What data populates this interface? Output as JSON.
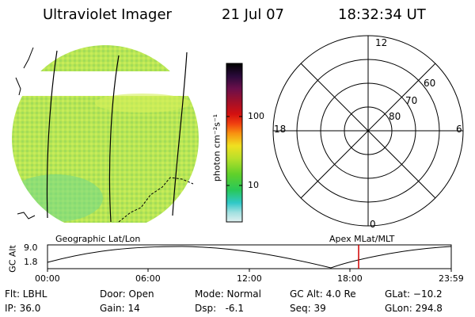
{
  "header": {
    "instrument": "Ultraviolet Imager",
    "date": "21 Jul 07",
    "time": "18:32:34 UT"
  },
  "colorbar": {
    "unit": "photon cm⁻²s⁻¹",
    "ticks": [
      "100",
      "10"
    ],
    "colors": [
      "#000000",
      "#2a0a3a",
      "#6b0f4a",
      "#a0102a",
      "#d41010",
      "#f04010",
      "#f89010",
      "#f0e020",
      "#b8e02a",
      "#60d02a",
      "#28c85a",
      "#30c8c8",
      "#a0e0e0",
      "#e0f0f0"
    ]
  },
  "polar": {
    "labels": {
      "top": "12",
      "left": "18",
      "right": "6",
      "bottom": "0"
    },
    "rings": [
      "60",
      "70",
      "80"
    ]
  },
  "timeline": {
    "left_title": "Geographic Lat/Lon",
    "right_title": "Apex MLat/MLT",
    "y_label": "GC Alt",
    "y_ticks": [
      "9.0",
      "1.8"
    ],
    "x_ticks": [
      "00:00",
      "06:00",
      "12:00",
      "18:00",
      "23:59"
    ],
    "marker_color": "#d00000"
  },
  "info": {
    "flt": "Flt: LBHL",
    "ip": "IP: 36.0",
    "door": "Door: Open",
    "gain": "Gain: 14",
    "mode": "Mode: Normal",
    "dsp": "Dsp:   -6.1",
    "gc_alt": "GC Alt: 4.0 Re",
    "seq": "Seq: 39",
    "glat": "GLat: −10.2",
    "glon": "GLon: 294.8"
  },
  "image_colors": {
    "bright": "#d8f05a",
    "mid": "#a8e050",
    "dim": "#50d090",
    "edge": "#40c8c8"
  }
}
